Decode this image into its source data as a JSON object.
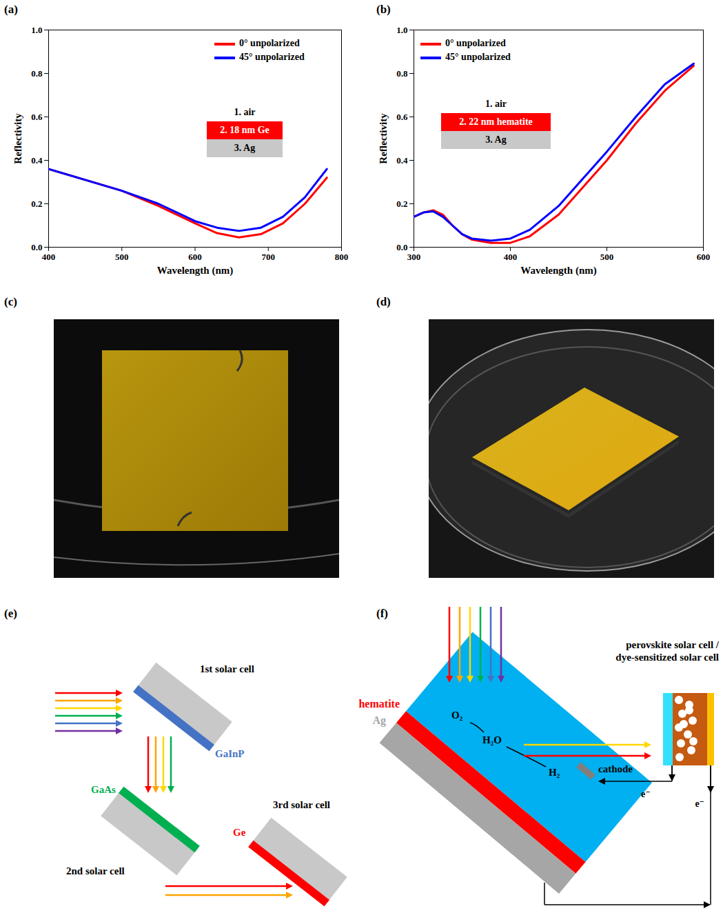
{
  "panels": [
    "(a)",
    "(b)",
    "(c)",
    "(d)",
    "(e)",
    "(f)"
  ],
  "chart_data": [
    {
      "type": "line",
      "x_label": "Wavelength (nm)",
      "y_label": "Reflectivity",
      "xlim": [
        400,
        800
      ],
      "xticks": [
        400,
        500,
        600,
        700,
        800
      ],
      "ylim": [
        0,
        1
      ],
      "yticks": [
        {
          "value": 0,
          "label": "0.0"
        },
        0.2,
        0.4,
        0.6,
        0.8,
        {
          "value": 1,
          "label": "1.0"
        }
      ],
      "legend": "upper right",
      "x": [
        400,
        450,
        500,
        550,
        600,
        630,
        660,
        690,
        720,
        750,
        780
      ],
      "series": [
        {
          "name": "0° unpolarized",
          "color": "#ff0000",
          "values": [
            0.36,
            0.31,
            0.26,
            0.19,
            0.11,
            0.065,
            0.045,
            0.06,
            0.11,
            0.2,
            0.32
          ]
        },
        {
          "name": "45° unpolarized",
          "color": "#0000ff",
          "values": [
            0.36,
            0.31,
            0.26,
            0.2,
            0.12,
            0.09,
            0.075,
            0.09,
            0.14,
            0.23,
            0.36
          ]
        }
      ],
      "annotations": [
        {
          "text": "1. air",
          "color": "#ffffff"
        },
        {
          "text": "2. 18 nm Ge",
          "color": "#ff0000"
        },
        {
          "text": "3. Ag",
          "color": "#c8c8c8"
        }
      ]
    },
    {
      "type": "line",
      "x_label": "Wavelength (nm)",
      "y_label": "Reflectivity",
      "xlim": [
        300,
        600
      ],
      "xticks": [
        300,
        400,
        500,
        600
      ],
      "ylim": [
        0,
        1
      ],
      "yticks": [
        {
          "value": 0,
          "label": "0.0"
        },
        0.2,
        0.4,
        0.6,
        0.8,
        {
          "value": 1,
          "label": "1.0"
        }
      ],
      "legend": "upper left",
      "x": [
        300,
        310,
        320,
        330,
        340,
        350,
        360,
        380,
        400,
        420,
        450,
        480,
        500,
        530,
        560,
        590
      ],
      "series": [
        {
          "name": "0° unpolarized",
          "color": "#ff0000",
          "values": [
            0.14,
            0.16,
            0.17,
            0.15,
            0.1,
            0.06,
            0.035,
            0.02,
            0.02,
            0.05,
            0.15,
            0.3,
            0.4,
            0.57,
            0.72,
            0.835
          ]
        },
        {
          "name": "45° unpolarized",
          "color": "#0000ff",
          "values": [
            0.14,
            0.16,
            0.165,
            0.14,
            0.1,
            0.06,
            0.04,
            0.03,
            0.04,
            0.08,
            0.19,
            0.34,
            0.44,
            0.6,
            0.75,
            0.845
          ]
        }
      ],
      "annotations": [
        {
          "text": "1. air",
          "color": "#ffffff"
        },
        {
          "text": "2. 22 nm hematite",
          "color": "#ff0000"
        },
        {
          "text": "3. Ag",
          "color": "#c8c8c8"
        }
      ]
    }
  ],
  "diagrams": {
    "e": {
      "cells": [
        {
          "label": "1st solar cell",
          "layer": "GaInP",
          "color": "#4472c4"
        },
        {
          "label": "2nd solar cell",
          "layer": "GaAs",
          "color": "#00b050"
        },
        {
          "label": "3rd solar cell",
          "layer": "Ge",
          "color": "#ff0000"
        }
      ]
    },
    "f": {
      "layers": [
        {
          "label": "hematite",
          "color": "#ff0000"
        },
        {
          "label": "Ag",
          "color": "#a6a6a6"
        }
      ],
      "reaction": [
        "O₂",
        "H₂O",
        "H₂"
      ],
      "cathode": "cathode",
      "cell_label": [
        "perovskite solar cell /",
        "dye-sensitized solar cell"
      ],
      "electron": "e⁻"
    }
  }
}
